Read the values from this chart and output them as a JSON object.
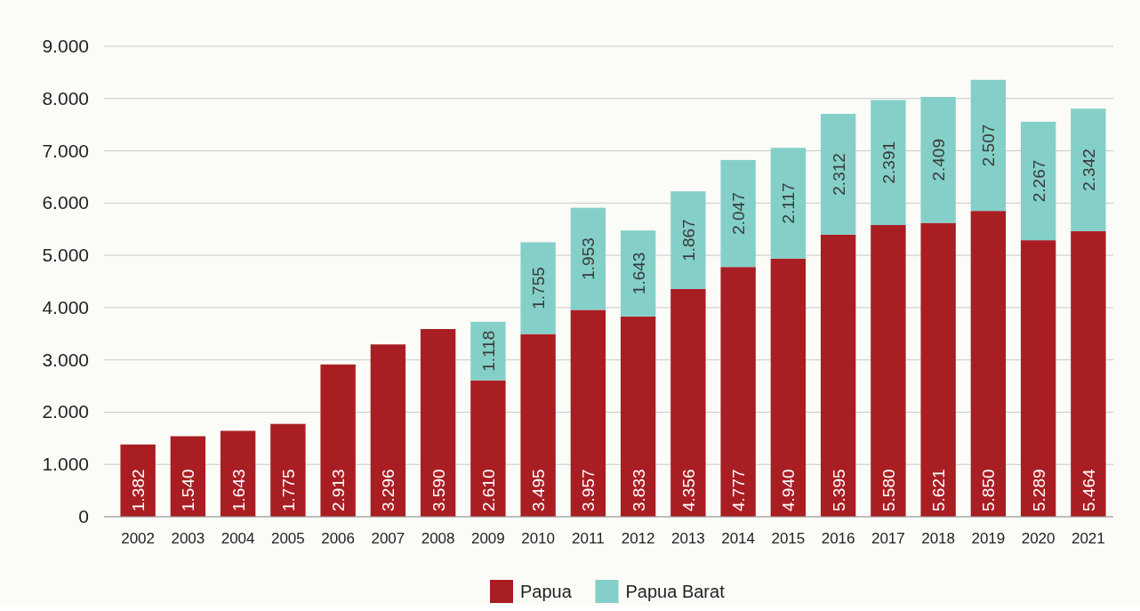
{
  "chart_data": {
    "type": "bar",
    "stacked": true,
    "categories": [
      "2002",
      "2003",
      "2004",
      "2005",
      "2006",
      "2007",
      "2008",
      "2009",
      "2010",
      "2011",
      "2012",
      "2013",
      "2014",
      "2015",
      "2016",
      "2017",
      "2018",
      "2019",
      "2020",
      "2021"
    ],
    "series": [
      {
        "name": "Papua",
        "color": "#a91e23",
        "values": [
          1382,
          1540,
          1643,
          1775,
          2913,
          3296,
          3590,
          2610,
          3495,
          3957,
          3833,
          4356,
          4777,
          4940,
          5395,
          5580,
          5621,
          5850,
          5289,
          5464
        ],
        "value_labels": [
          "1.382",
          "1.540",
          "1.643",
          "1.775",
          "2.913",
          "3.296",
          "3.590",
          "2.610",
          "3.495",
          "3.957",
          "3.833",
          "4.356",
          "4.777",
          "4.940",
          "5.395",
          "5.580",
          "5.621",
          "5.850",
          "5.289",
          "5.464"
        ]
      },
      {
        "name": "Papua Barat",
        "color": "#84d0c8",
        "values": [
          null,
          null,
          null,
          null,
          null,
          null,
          null,
          1118,
          1755,
          1953,
          1643,
          1867,
          2047,
          2117,
          2312,
          2391,
          2409,
          2507,
          2267,
          2342
        ],
        "value_labels": [
          null,
          null,
          null,
          null,
          null,
          null,
          null,
          "1.118",
          "1.755",
          "1.953",
          "1.643",
          "1.867",
          "2.047",
          "2.117",
          "2.312",
          "2.391",
          "2.409",
          "2.507",
          "2.267",
          "2.342"
        ]
      }
    ],
    "ylim": [
      0,
      9000
    ],
    "yticks": [
      {
        "value": 0,
        "label": "0"
      },
      {
        "value": 1000,
        "label": "1.000"
      },
      {
        "value": 2000,
        "label": "2.000"
      },
      {
        "value": 3000,
        "label": "3.000"
      },
      {
        "value": 4000,
        "label": "4.000"
      },
      {
        "value": 5000,
        "label": "5.000"
      },
      {
        "value": 6000,
        "label": "6.000"
      },
      {
        "value": 7000,
        "label": "7.000"
      },
      {
        "value": 8000,
        "label": "8.000"
      },
      {
        "value": 9000,
        "label": "9.000"
      }
    ],
    "grid": "y",
    "legend": "bottom"
  }
}
